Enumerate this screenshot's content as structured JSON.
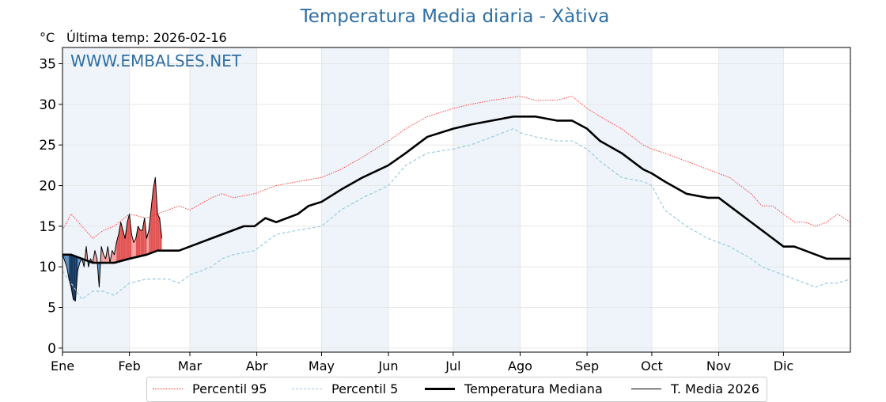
{
  "title": "Temperatura Media diaria - Xàtiva",
  "unit": "°C",
  "last_temp": "Última temp: 2026-02-16",
  "watermark": "WWW.EMBALSES.NET",
  "legend": {
    "p95": "Percentil 95",
    "p5": "Percentil 5",
    "median": "Temperatura Mediana",
    "current": "T. Media 2026"
  },
  "colors": {
    "p95": "#ff2a2a",
    "p5": "#9ccbe0",
    "median": "#000000",
    "current": "#000000",
    "warm_fill": "#f4a3a3",
    "warm_fill_strong": "#e35555",
    "cold_fill": "#5b8fc0",
    "cold_fill_strong": "#15385f",
    "month_band": "#eef4fa",
    "title": "#2f6fa3"
  },
  "chart_data": {
    "type": "line",
    "title": "Temperatura Media diaria - Xàtiva",
    "ylabel": "°C",
    "xlim": [
      1,
      366
    ],
    "ylim": [
      -0.5,
      37
    ],
    "yticks": [
      0,
      5,
      10,
      15,
      20,
      25,
      30,
      35
    ],
    "months": [
      "Ene",
      "Feb",
      "Mar",
      "Abr",
      "May",
      "Jun",
      "Jul",
      "Ago",
      "Sep",
      "Oct",
      "Nov",
      "Dic"
    ],
    "month_start_days": [
      1,
      32,
      60,
      91,
      121,
      152,
      182,
      213,
      244,
      274,
      305,
      335
    ],
    "shaded_months": [
      "Ene",
      "Mar",
      "May",
      "Jul",
      "Sep",
      "Nov"
    ],
    "grid": true,
    "legend_position": "bottom",
    "series": [
      {
        "name": "Percentil 95",
        "style": "dotted",
        "x": [
          1,
          5,
          10,
          15,
          20,
          25,
          32,
          40,
          45,
          50,
          55,
          60,
          70,
          75,
          80,
          90,
          100,
          110,
          121,
          130,
          140,
          152,
          160,
          170,
          182,
          190,
          200,
          213,
          220,
          230,
          237,
          244,
          250,
          260,
          270,
          274,
          280,
          290,
          300,
          305,
          310,
          320,
          325,
          330,
          335,
          340,
          345,
          350,
          355,
          360,
          366
        ],
        "values": [
          14.5,
          16.5,
          15.0,
          13.5,
          14.5,
          15.0,
          16.5,
          16.0,
          16.5,
          17.0,
          17.5,
          17.0,
          18.5,
          19.0,
          18.5,
          19.0,
          20.0,
          20.5,
          21.0,
          22.0,
          23.5,
          25.5,
          27.0,
          28.5,
          29.5,
          30.0,
          30.5,
          31.0,
          30.5,
          30.5,
          31.0,
          29.5,
          28.5,
          27.0,
          25.0,
          24.5,
          24.0,
          23.0,
          22.0,
          21.5,
          21.0,
          19.0,
          17.5,
          17.5,
          16.5,
          15.5,
          15.5,
          15.0,
          15.5,
          16.5,
          15.5
        ]
      },
      {
        "name": "Percentil 5",
        "style": "dashed",
        "x": [
          1,
          5,
          10,
          15,
          20,
          25,
          32,
          40,
          45,
          50,
          55,
          60,
          70,
          75,
          80,
          90,
          100,
          110,
          121,
          130,
          140,
          152,
          160,
          170,
          182,
          190,
          200,
          210,
          213,
          220,
          230,
          237,
          244,
          250,
          260,
          270,
          274,
          280,
          290,
          300,
          305,
          310,
          320,
          325,
          330,
          335,
          340,
          345,
          350,
          355,
          360,
          366
        ],
        "values": [
          9.5,
          8.0,
          6.0,
          7.0,
          7.0,
          6.5,
          8.0,
          8.5,
          8.5,
          8.5,
          8.0,
          9.0,
          10.0,
          11.0,
          11.5,
          12.0,
          14.0,
          14.5,
          15.0,
          17.0,
          18.5,
          20.0,
          22.5,
          24.0,
          24.5,
          25.0,
          26.0,
          27.0,
          26.5,
          26.0,
          25.5,
          25.5,
          24.5,
          23.0,
          21.0,
          20.5,
          20.0,
          17.0,
          15.0,
          13.5,
          13.0,
          12.5,
          11.0,
          10.0,
          9.5,
          9.0,
          8.5,
          8.0,
          7.5,
          8.0,
          8.0,
          8.5
        ]
      },
      {
        "name": "Temperatura Mediana",
        "style": "solid",
        "x": [
          1,
          5,
          10,
          15,
          20,
          25,
          32,
          40,
          45,
          50,
          55,
          60,
          70,
          75,
          80,
          85,
          90,
          95,
          100,
          110,
          115,
          121,
          130,
          140,
          152,
          160,
          170,
          182,
          190,
          200,
          210,
          213,
          220,
          230,
          237,
          244,
          250,
          260,
          270,
          274,
          280,
          290,
          300,
          305,
          310,
          320,
          325,
          330,
          335,
          340,
          345,
          350,
          355,
          360,
          366
        ],
        "values": [
          11.5,
          11.5,
          11.0,
          10.5,
          10.5,
          10.5,
          11.0,
          11.5,
          12.0,
          12.0,
          12.0,
          12.5,
          13.5,
          14.0,
          14.5,
          15.0,
          15.0,
          16.0,
          15.5,
          16.5,
          17.5,
          18.0,
          19.5,
          21.0,
          22.5,
          24.0,
          26.0,
          27.0,
          27.5,
          28.0,
          28.5,
          28.5,
          28.5,
          28.0,
          28.0,
          27.0,
          25.5,
          24.0,
          22.0,
          21.5,
          20.5,
          19.0,
          18.5,
          18.5,
          17.5,
          15.5,
          14.5,
          13.5,
          12.5,
          12.5,
          12.0,
          11.5,
          11.0,
          11.0,
          11.0
        ]
      },
      {
        "name": "T. Media 2026",
        "style": "solid-thin",
        "x": [
          1,
          3,
          4,
          5,
          6,
          7,
          8,
          9,
          10,
          11,
          12,
          13,
          14,
          15,
          16,
          17,
          18,
          19,
          20,
          21,
          22,
          23,
          24,
          25,
          26,
          27,
          28,
          29,
          30,
          31,
          32,
          33,
          34,
          35,
          36,
          37,
          38,
          39,
          40,
          41,
          42,
          43,
          44,
          45,
          46,
          47
        ],
        "values": [
          11.5,
          10.0,
          8.5,
          7.5,
          6.0,
          5.8,
          9.5,
          10.5,
          11.0,
          10.0,
          12.5,
          10.0,
          11.0,
          10.5,
          12.0,
          11.0,
          7.5,
          12.5,
          11.5,
          11.0,
          12.5,
          10.5,
          12.0,
          11.5,
          13.0,
          14.0,
          15.5,
          14.5,
          13.5,
          15.5,
          16.5,
          14.0,
          13.0,
          13.5,
          15.0,
          14.5,
          14.5,
          16.0,
          13.5,
          14.5,
          17.0,
          19.5,
          21.0,
          16.5,
          16.0,
          13.5
        ]
      }
    ]
  }
}
